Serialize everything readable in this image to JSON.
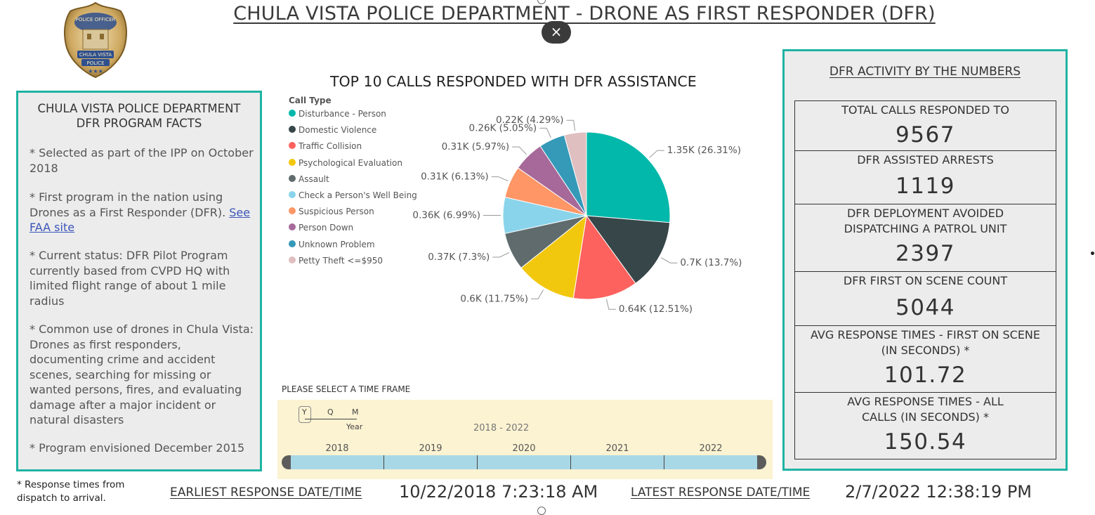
{
  "title": "CHULA VISTA POLICE DEPARTMENT - DRONE AS FIRST RESPONDER (DFR)",
  "close_symbol": "×",
  "badge": {
    "line1": "POLICE OFFICER",
    "line2": "CHULA VISTA",
    "line3": "POLICE"
  },
  "facts": {
    "title_line1": "CHULA VISTA POLICE DEPARTMENT",
    "title_line2": "DFR PROGRAM FACTS",
    "fact1": "* Selected as part of the IPP on October 2018",
    "fact2_text": "* First program in the nation using Drones as a First Responder (DFR). ",
    "fact2_link": "See FAA site",
    "fact3": "* Current status: DFR Pilot Program currently based from CVPD HQ with limited flight range of about 1 mile radius",
    "fact4": "*  Common use of drones in Chula Vista: Drones as first responders, documenting crime and accident scenes, searching for missing or wanted persons, fires, and evaluating damage after a major incident or natural disasters",
    "fact5": "* Program envisioned December 2015"
  },
  "chart_data": {
    "type": "pie",
    "title": "TOP 10 CALLS RESPONDED WITH DFR ASSISTANCE",
    "legend_title": "Call Type",
    "categories": [
      "Disturbance - Person",
      "Domestic Violence",
      "Traffic Collision",
      "Psychological Evaluation",
      "Assault",
      "Check a Person's Well Being",
      "Suspicious Person",
      "Person Down",
      "Unknown Problem",
      "Petty Theft <=$950"
    ],
    "percents": [
      26.31,
      13.7,
      12.51,
      11.75,
      7.3,
      6.99,
      6.13,
      5.97,
      5.05,
      4.29
    ],
    "labels": [
      "1.35K (26.31%)",
      "0.7K (13.7%)",
      "0.64K (12.51%)",
      "0.6K (11.75%)",
      "0.37K (7.3%)",
      "0.36K (6.99%)",
      "0.31K (6.13%)",
      "0.31K (5.97%)",
      "0.26K (5.05%)",
      "0.22K (4.29%)"
    ],
    "colors": [
      "#01b8aa",
      "#374649",
      "#fd625e",
      "#f2c80f",
      "#5f6b6d",
      "#8ad4eb",
      "#fe9666",
      "#a66999",
      "#3599b8",
      "#dfbfbf"
    ]
  },
  "time_frame": {
    "label": "PLEASE SELECT A TIME FRAME",
    "range": "2018 - 2022",
    "years": [
      "2018",
      "2019",
      "2020",
      "2021",
      "2022"
    ],
    "granularity": [
      "Y",
      "Q",
      "M"
    ],
    "granularity_selected": "Year"
  },
  "numbers": {
    "title": "DFR ACTIVITY BY THE NUMBERS",
    "kpis": [
      {
        "label": "TOTAL CALLS RESPONDED TO",
        "value": "9567"
      },
      {
        "label": "DFR ASSISTED ARRESTS",
        "value": "1119"
      },
      {
        "label": "DFR DEPLOYMENT AVOIDED DISPATCHING A PATROL UNIT",
        "value": "2397"
      },
      {
        "label": "DFR FIRST ON SCENE COUNT",
        "value": "5044"
      },
      {
        "label": "AVG RESPONSE TIMES - FIRST ON SCENE (IN SECONDS) *",
        "value": "101.72"
      },
      {
        "label": "AVG RESPONSE TIMES - ALL CALLS (IN SECONDS) *",
        "value": "150.54"
      }
    ]
  },
  "footer": {
    "footnote_line1": "* Response times from",
    "footnote_line2": "dispatch to arrival.",
    "earliest_label": "EARLIEST RESPONSE DATE/TIME",
    "earliest_value": "10/22/2018 7:23:18 AM",
    "latest_label": "LATEST RESPONSE DATE/TIME",
    "latest_value": "2/7/2022 12:38:19 PM"
  }
}
